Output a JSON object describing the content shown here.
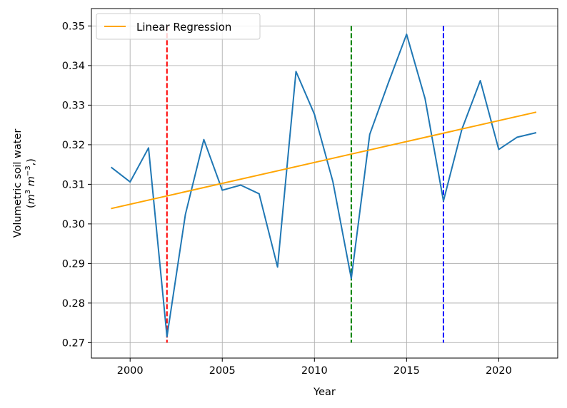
{
  "chart_data": {
    "type": "line",
    "xlabel": "Year",
    "ylabel_line1": "Volumetric soil water",
    "ylabel_line2_prefix": "(",
    "ylabel_units": [
      "m",
      "3",
      " m",
      "−3",
      ",)"
    ],
    "xlim": [
      1997.9,
      2023.2
    ],
    "ylim": [
      0.2661,
      0.3544
    ],
    "xticks": [
      2000,
      2005,
      2010,
      2015,
      2020
    ],
    "yticks": [
      0.27,
      0.28,
      0.29,
      0.3,
      0.31,
      0.32,
      0.33,
      0.34,
      0.35
    ],
    "ytick_labels": [
      "0.27",
      "0.28",
      "0.29",
      "0.30",
      "0.31",
      "0.32",
      "0.33",
      "0.34",
      "0.35"
    ],
    "grid": true,
    "legend_position": "top-left",
    "series": [
      {
        "color": "#1f77b4",
        "x": [
          1999,
          2000,
          2001,
          2002,
          2003,
          2004,
          2005,
          2006,
          2007,
          2008,
          2009,
          2010,
          2011,
          2012,
          2013,
          2014,
          2015,
          2016,
          2017,
          2018,
          2019,
          2020,
          2021,
          2022
        ],
        "y": [
          0.3142,
          0.3106,
          0.3192,
          0.2715,
          0.3024,
          0.3213,
          0.3085,
          0.3098,
          0.3076,
          0.2891,
          0.3385,
          0.3277,
          0.3107,
          0.2862,
          0.3226,
          0.3355,
          0.3479,
          0.3317,
          0.3058,
          0.3239,
          0.3362,
          0.3188,
          0.3219,
          0.323
        ]
      },
      {
        "name": "Linear Regression",
        "color": "#ffa500",
        "x": [
          1999,
          2022
        ],
        "y": [
          0.3039,
          0.3282
        ]
      }
    ],
    "vlines": [
      {
        "x": 2002,
        "color": "#ff0000"
      },
      {
        "x": 2012,
        "color": "#008000"
      },
      {
        "x": 2017,
        "color": "#0000ff"
      }
    ]
  }
}
